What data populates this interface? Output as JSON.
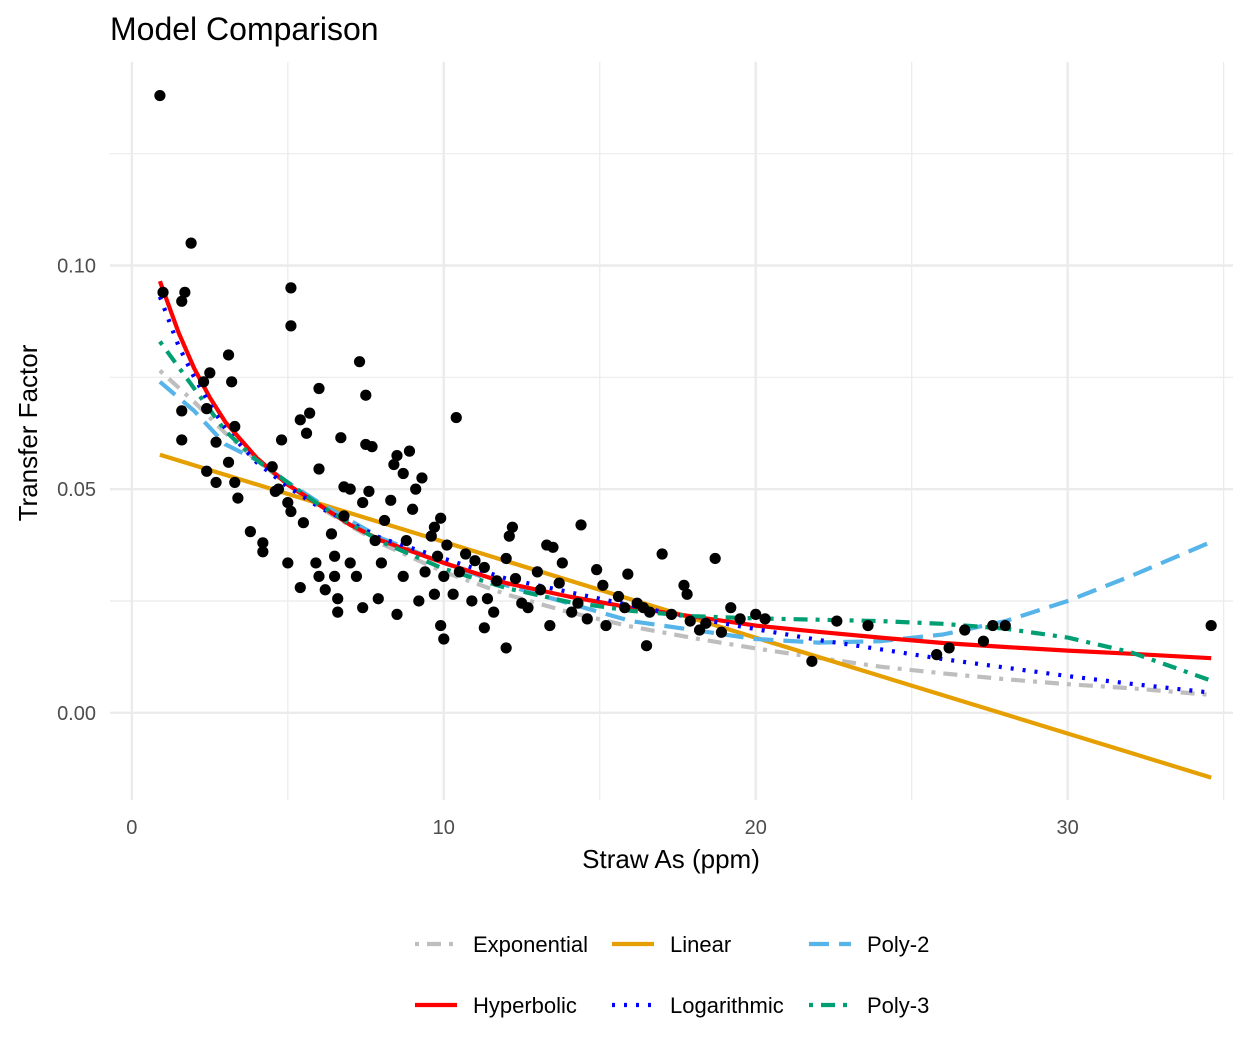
{
  "chart_data": {
    "type": "scatter",
    "title": "Model Comparison",
    "xlabel": "Straw As (ppm)",
    "ylabel": "Transfer Factor",
    "xlim": [
      -0.7,
      35.3
    ],
    "ylim": [
      -0.0195,
      0.1455
    ],
    "x_ticks": [
      0,
      10,
      20,
      30
    ],
    "x_tick_labels": [
      "0",
      "10",
      "20",
      "30"
    ],
    "y_ticks": [
      0.0,
      0.05,
      0.1
    ],
    "y_tick_labels": [
      "0.00",
      "0.05",
      "0.10"
    ],
    "grid": true,
    "legend_position": "bottom",
    "points": [
      [
        0.9,
        0.138
      ],
      [
        1.0,
        0.094
      ],
      [
        1.9,
        0.105
      ],
      [
        1.7,
        0.094
      ],
      [
        1.6,
        0.092
      ],
      [
        1.6,
        0.0675
      ],
      [
        1.6,
        0.061
      ],
      [
        2.5,
        0.076
      ],
      [
        2.3,
        0.074
      ],
      [
        2.4,
        0.068
      ],
      [
        3.1,
        0.08
      ],
      [
        3.2,
        0.074
      ],
      [
        3.3,
        0.064
      ],
      [
        2.7,
        0.0605
      ],
      [
        3.1,
        0.056
      ],
      [
        2.4,
        0.054
      ],
      [
        2.7,
        0.0515
      ],
      [
        3.3,
        0.0515
      ],
      [
        3.4,
        0.048
      ],
      [
        3.8,
        0.0405
      ],
      [
        4.2,
        0.038
      ],
      [
        4.2,
        0.036
      ],
      [
        4.5,
        0.055
      ],
      [
        4.7,
        0.05
      ],
      [
        4.6,
        0.0495
      ],
      [
        4.8,
        0.061
      ],
      [
        5.1,
        0.095
      ],
      [
        5.1,
        0.0865
      ],
      [
        5.4,
        0.0655
      ],
      [
        5.7,
        0.067
      ],
      [
        5.6,
        0.0625
      ],
      [
        5.0,
        0.047
      ],
      [
        5.1,
        0.045
      ],
      [
        5.5,
        0.0425
      ],
      [
        5.0,
        0.0335
      ],
      [
        5.4,
        0.028
      ],
      [
        5.9,
        0.0335
      ],
      [
        6.0,
        0.0305
      ],
      [
        6.2,
        0.0275
      ],
      [
        6.0,
        0.0545
      ],
      [
        6.0,
        0.0725
      ],
      [
        6.5,
        0.0305
      ],
      [
        6.5,
        0.035
      ],
      [
        6.4,
        0.04
      ],
      [
        6.8,
        0.044
      ],
      [
        6.8,
        0.0505
      ],
      [
        7.0,
        0.05
      ],
      [
        6.7,
        0.0615
      ],
      [
        6.6,
        0.0255
      ],
      [
        6.6,
        0.0225
      ],
      [
        7.3,
        0.0785
      ],
      [
        7.5,
        0.071
      ],
      [
        7.0,
        0.0335
      ],
      [
        7.2,
        0.0305
      ],
      [
        7.4,
        0.047
      ],
      [
        7.6,
        0.0495
      ],
      [
        7.5,
        0.06
      ],
      [
        7.7,
        0.0595
      ],
      [
        7.4,
        0.0235
      ],
      [
        7.9,
        0.0255
      ],
      [
        8.0,
        0.0335
      ],
      [
        7.8,
        0.0385
      ],
      [
        8.1,
        0.043
      ],
      [
        8.3,
        0.0475
      ],
      [
        8.4,
        0.0555
      ],
      [
        8.5,
        0.0575
      ],
      [
        8.7,
        0.0535
      ],
      [
        8.9,
        0.0585
      ],
      [
        8.5,
        0.022
      ],
      [
        8.7,
        0.0305
      ],
      [
        8.8,
        0.0385
      ],
      [
        9.0,
        0.0455
      ],
      [
        9.1,
        0.05
      ],
      [
        9.3,
        0.0525
      ],
      [
        9.4,
        0.0315
      ],
      [
        9.6,
        0.0395
      ],
      [
        9.7,
        0.0415
      ],
      [
        9.8,
        0.035
      ],
      [
        9.7,
        0.0265
      ],
      [
        9.2,
        0.025
      ],
      [
        9.9,
        0.0435
      ],
      [
        9.9,
        0.0195
      ],
      [
        10.0,
        0.0305
      ],
      [
        10.1,
        0.0375
      ],
      [
        10.3,
        0.0265
      ],
      [
        10.4,
        0.066
      ],
      [
        10.5,
        0.0315
      ],
      [
        10.7,
        0.0355
      ],
      [
        10.0,
        0.0165
      ],
      [
        10.9,
        0.025
      ],
      [
        11.0,
        0.034
      ],
      [
        11.3,
        0.0325
      ],
      [
        11.4,
        0.0255
      ],
      [
        11.3,
        0.019
      ],
      [
        11.6,
        0.0225
      ],
      [
        11.7,
        0.0295
      ],
      [
        12.0,
        0.0345
      ],
      [
        12.1,
        0.0395
      ],
      [
        12.2,
        0.0415
      ],
      [
        12.0,
        0.0145
      ],
      [
        12.3,
        0.03
      ],
      [
        12.5,
        0.0245
      ],
      [
        12.7,
        0.0235
      ],
      [
        13.0,
        0.0315
      ],
      [
        13.1,
        0.0275
      ],
      [
        13.3,
        0.0375
      ],
      [
        13.4,
        0.0195
      ],
      [
        13.5,
        0.037
      ],
      [
        13.7,
        0.029
      ],
      [
        13.8,
        0.0335
      ],
      [
        14.1,
        0.0225
      ],
      [
        14.3,
        0.0245
      ],
      [
        14.4,
        0.042
      ],
      [
        14.6,
        0.021
      ],
      [
        14.9,
        0.032
      ],
      [
        15.1,
        0.0285
      ],
      [
        15.2,
        0.0195
      ],
      [
        15.6,
        0.026
      ],
      [
        15.8,
        0.0235
      ],
      [
        15.9,
        0.031
      ],
      [
        16.2,
        0.0245
      ],
      [
        16.4,
        0.0235
      ],
      [
        16.5,
        0.015
      ],
      [
        16.6,
        0.0225
      ],
      [
        17.0,
        0.0355
      ],
      [
        17.3,
        0.022
      ],
      [
        17.7,
        0.0285
      ],
      [
        17.8,
        0.0265
      ],
      [
        17.9,
        0.0205
      ],
      [
        18.2,
        0.0185
      ],
      [
        18.4,
        0.02
      ],
      [
        18.7,
        0.0345
      ],
      [
        18.9,
        0.018
      ],
      [
        19.2,
        0.0235
      ],
      [
        19.5,
        0.021
      ],
      [
        20.0,
        0.022
      ],
      [
        20.3,
        0.021
      ],
      [
        21.8,
        0.0115
      ],
      [
        22.6,
        0.0205
      ],
      [
        23.6,
        0.0195
      ],
      [
        25.8,
        0.013
      ],
      [
        26.2,
        0.0145
      ],
      [
        26.7,
        0.0185
      ],
      [
        27.3,
        0.016
      ],
      [
        27.6,
        0.0195
      ],
      [
        28.0,
        0.0195
      ],
      [
        34.6,
        0.0195
      ]
    ],
    "series": [
      {
        "name": "Exponential",
        "color": "#bebebe",
        "dash": "dotdash",
        "x": [
          0.9,
          2,
          3,
          4,
          5,
          6,
          7,
          8,
          10,
          12,
          14,
          16,
          18,
          20,
          22,
          24,
          26,
          28,
          30,
          32,
          34.6
        ],
        "values": [
          0.0765,
          0.0695,
          0.0625,
          0.0565,
          0.051,
          0.046,
          0.0418,
          0.0378,
          0.0315,
          0.0265,
          0.0225,
          0.0193,
          0.0167,
          0.0144,
          0.0123,
          0.0103,
          0.0088,
          0.0075,
          0.0064,
          0.0055,
          0.004
        ]
      },
      {
        "name": "Linear",
        "color": "#e69f00",
        "dash": "solid",
        "x": [
          0.9,
          34.6
        ],
        "values": [
          0.0577,
          -0.0145
        ]
      },
      {
        "name": "Poly-2",
        "color": "#56b4e9",
        "dash": "longdash",
        "x": [
          0.9,
          2,
          3,
          4,
          5,
          6,
          7,
          8,
          10,
          12,
          14,
          16,
          18,
          20,
          22,
          24,
          26,
          28,
          30,
          32,
          34.6
        ],
        "values": [
          0.074,
          0.0675,
          0.06,
          0.0565,
          0.0515,
          0.047,
          0.043,
          0.039,
          0.0335,
          0.0285,
          0.0245,
          0.0205,
          0.0185,
          0.0165,
          0.0157,
          0.016,
          0.0175,
          0.0205,
          0.025,
          0.0305,
          0.0382
        ]
      },
      {
        "name": "Hyperbolic",
        "color": "#ff0000",
        "dash": "solid",
        "x": [
          0.9,
          1.5,
          2,
          2.5,
          3,
          4,
          5,
          6,
          7,
          8,
          10,
          12,
          14,
          16,
          18,
          20,
          22,
          24,
          26,
          28,
          30,
          32,
          34.6
        ],
        "values": [
          0.0965,
          0.085,
          0.077,
          0.0705,
          0.065,
          0.057,
          0.051,
          0.0465,
          0.042,
          0.0385,
          0.0335,
          0.029,
          0.026,
          0.0235,
          0.0215,
          0.0195,
          0.0181,
          0.0168,
          0.0156,
          0.0147,
          0.0139,
          0.0132,
          0.0122
        ]
      },
      {
        "name": "Logarithmic",
        "color": "#0000ff",
        "dash": "dotted",
        "x": [
          0.9,
          1.5,
          2,
          2.5,
          3,
          4,
          5,
          6,
          7,
          8,
          10,
          12,
          14,
          16,
          18,
          20,
          22,
          24,
          26,
          28,
          30,
          32,
          34.6
        ],
        "values": [
          0.093,
          0.082,
          0.075,
          0.069,
          0.0635,
          0.056,
          0.0505,
          0.046,
          0.0425,
          0.039,
          0.0345,
          0.03,
          0.027,
          0.024,
          0.0212,
          0.0187,
          0.0163,
          0.0142,
          0.012,
          0.0101,
          0.0082,
          0.0065,
          0.0045
        ]
      },
      {
        "name": "Poly-3",
        "color": "#009e73",
        "dash": "dotdash",
        "x": [
          0.9,
          2,
          3,
          4,
          5,
          6,
          7,
          8,
          10,
          12,
          14,
          16,
          18,
          20,
          22,
          24,
          26,
          28,
          30,
          32,
          34.6
        ],
        "values": [
          0.083,
          0.0725,
          0.063,
          0.0565,
          0.0515,
          0.0465,
          0.0423,
          0.0382,
          0.0322,
          0.0279,
          0.0248,
          0.0228,
          0.0216,
          0.0211,
          0.0208,
          0.0205,
          0.0199,
          0.0188,
          0.0168,
          0.0136,
          0.0072
        ]
      }
    ]
  }
}
